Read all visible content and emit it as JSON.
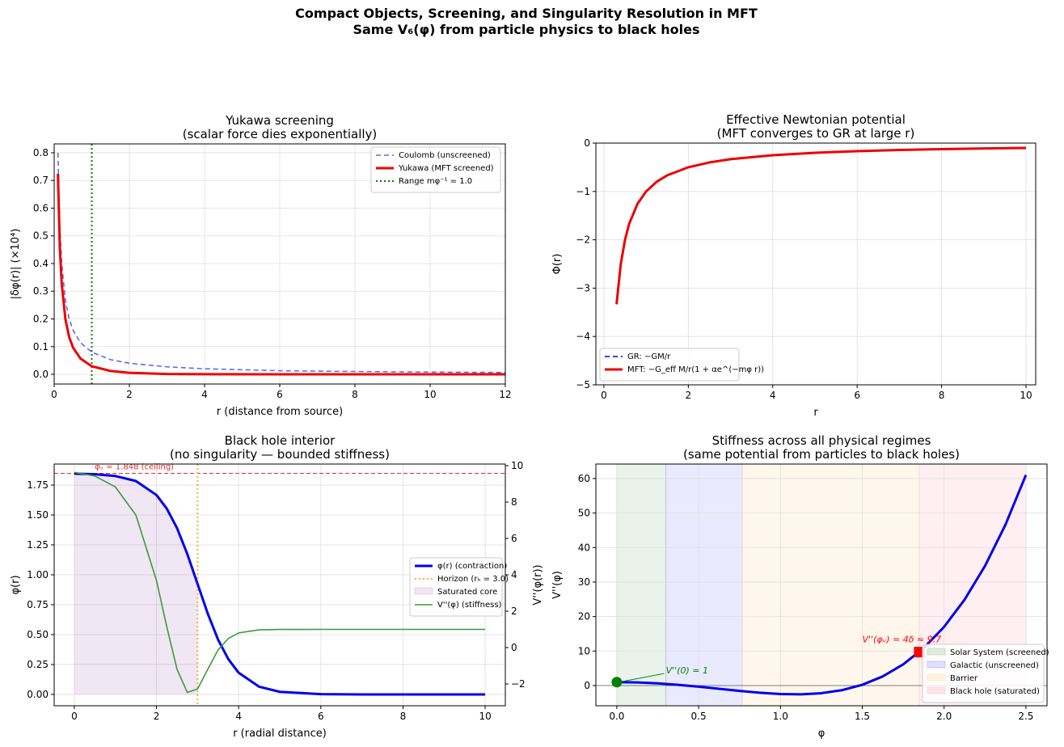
{
  "figure": {
    "suptitle_line1": "Compact Objects, Screening, and Singularity Resolution in MFT",
    "suptitle_line2": "Same V₆(φ) from particle physics to black holes"
  },
  "chart_data": [
    {
      "id": "p1",
      "type": "line",
      "title_line1": "Yukawa screening",
      "title_line2": "(scalar force dies exponentially)",
      "xlabel": "r (distance from source)",
      "ylabel": "|δφ(r)| (×10⁴)",
      "xlim": [
        0,
        12
      ],
      "ylim": [
        -0.035,
        0.832
      ],
      "xticks": [
        0,
        2,
        4,
        6,
        8,
        10,
        12
      ],
      "xticklabels": [
        "0",
        "2",
        "4",
        "6",
        "8",
        "10",
        "12"
      ],
      "yticks": [
        0,
        0.1,
        0.2,
        0.3,
        0.4,
        0.5,
        0.6,
        0.7,
        0.8
      ],
      "yticklabels": [
        "0.0",
        "0.1",
        "0.2",
        "0.3",
        "0.4",
        "0.5",
        "0.6",
        "0.7",
        "0.8"
      ],
      "grid": true,
      "legend_position": "upper right",
      "series": [
        {
          "name": "Coulomb (unscreened)",
          "color": "#6666ee",
          "style": "dashed",
          "x": [
            0.1,
            0.15,
            0.2,
            0.3,
            0.4,
            0.5,
            0.7,
            1,
            1.5,
            2,
            3,
            4,
            6,
            8,
            10,
            12
          ],
          "y": [
            0.8,
            0.533,
            0.4,
            0.267,
            0.2,
            0.16,
            0.114,
            0.08,
            0.053,
            0.04,
            0.027,
            0.02,
            0.013,
            0.01,
            0.008,
            0.0067
          ]
        },
        {
          "name": "Yukawa (MFT screened)",
          "color": "#ee0000",
          "style": "solid-thick",
          "x": [
            0.1,
            0.15,
            0.2,
            0.3,
            0.4,
            0.5,
            0.7,
            1,
            1.5,
            2,
            3,
            4,
            6,
            8,
            10,
            12
          ],
          "y": [
            0.724,
            0.459,
            0.328,
            0.198,
            0.134,
            0.097,
            0.057,
            0.029,
            0.012,
            0.0054,
            0.0013,
            0.0004,
            0,
            0,
            0,
            0
          ]
        }
      ],
      "vlines": [
        {
          "name": "Range mφ⁻¹ = 1.0",
          "x": 1.0,
          "color": "#008000",
          "style": "dotted"
        }
      ]
    },
    {
      "id": "p2",
      "type": "line",
      "title_line1": "Effective Newtonian potential",
      "title_line2": "(MFT converges to GR at large r)",
      "xlabel": "r",
      "ylabel": "Φ(r)",
      "xlim": [
        -0.19,
        10.23
      ],
      "ylim": [
        -5,
        0
      ],
      "xticks": [
        0,
        2,
        4,
        6,
        8,
        10
      ],
      "xticklabels": [
        "0",
        "2",
        "4",
        "6",
        "8",
        "10"
      ],
      "yticks": [
        0,
        -1,
        -2,
        -3,
        -4,
        -5
      ],
      "yticklabels": [
        "0",
        "−1",
        "−2",
        "−3",
        "−4",
        "−5"
      ],
      "grid": true,
      "legend_position": "lower left",
      "series": [
        {
          "name": "GR: −GM/r",
          "color": "#0000ee",
          "style": "dashed",
          "x": [
            0.3,
            0.4,
            0.5,
            0.6,
            0.8,
            1,
            1.25,
            1.5,
            2,
            2.5,
            3,
            4,
            5,
            6,
            7,
            8,
            9,
            10
          ],
          "y": [
            -3.333,
            -2.5,
            -2,
            -1.667,
            -1.25,
            -1,
            -0.8,
            -0.667,
            -0.5,
            -0.4,
            -0.333,
            -0.25,
            -0.2,
            -0.167,
            -0.143,
            -0.125,
            -0.111,
            -0.1
          ]
        },
        {
          "name": "MFT: −G_eff M/r(1 + αe^(−mφ r))",
          "color": "#ee0000",
          "style": "solid-thick",
          "x": [
            0.3,
            0.4,
            0.5,
            0.6,
            0.8,
            1,
            1.25,
            1.5,
            2,
            2.5,
            3,
            4,
            5,
            6,
            7,
            8,
            9,
            10
          ],
          "y": [
            -3.333,
            -2.5,
            -2,
            -1.667,
            -1.25,
            -1,
            -0.8,
            -0.667,
            -0.5,
            -0.4,
            -0.333,
            -0.25,
            -0.2,
            -0.167,
            -0.143,
            -0.125,
            -0.111,
            -0.1
          ]
        }
      ]
    },
    {
      "id": "p3",
      "type": "line",
      "title_line1": "Black hole interior",
      "title_line2": "(no singularity — bounded stiffness)",
      "xlabel": "r (radial distance)",
      "ylabel": "φ(r)",
      "ylabel_right": "V''(φ(r))",
      "xlim": [
        -0.49,
        10.49
      ],
      "ylim": [
        -0.095,
        1.926
      ],
      "ylim_right": [
        -3.2,
        10.09
      ],
      "xticks": [
        0,
        2,
        4,
        6,
        8,
        10
      ],
      "xticklabels": [
        "0",
        "2",
        "4",
        "6",
        "8",
        "10"
      ],
      "yticks": [
        0,
        0.25,
        0.5,
        0.75,
        1.0,
        1.25,
        1.5,
        1.75
      ],
      "yticklabels": [
        "0.00",
        "0.25",
        "0.50",
        "0.75",
        "1.00",
        "1.25",
        "1.50",
        "1.75"
      ],
      "yticks_right": [
        -2,
        0,
        2,
        4,
        6,
        8,
        10
      ],
      "yticklabels_right": [
        "−2",
        "0",
        "2",
        "4",
        "6",
        "8",
        "10"
      ],
      "grid": true,
      "legend_position": "center right",
      "fill": {
        "name": "Saturated core",
        "color": "#9b59b6",
        "alpha": 0.15,
        "x_from": 0,
        "x_to": 3
      },
      "series": [
        {
          "name": "φ(r) (contraction)",
          "color": "#0000ee",
          "style": "solid-thick",
          "axis": "left",
          "x": [
            0,
            0.5,
            1,
            1.5,
            2,
            2.25,
            2.5,
            2.75,
            3,
            3.25,
            3.5,
            3.75,
            4,
            4.5,
            5,
            6,
            7,
            8,
            10
          ],
          "y": [
            1.846,
            1.841,
            1.826,
            1.784,
            1.667,
            1.554,
            1.391,
            1.174,
            0.924,
            0.674,
            0.457,
            0.294,
            0.181,
            0.064,
            0.0216,
            0.0023,
            0,
            0,
            0
          ]
        },
        {
          "name": "V''(φ) (stiffness)",
          "color": "#3a9a3a",
          "style": "solid",
          "axis": "right",
          "x": [
            0,
            0.5,
            1,
            1.5,
            2,
            2.25,
            2.5,
            2.75,
            3,
            3.25,
            3.5,
            3.75,
            4,
            4.5,
            5,
            6,
            7,
            8,
            10
          ],
          "y": [
            9.63,
            9.43,
            8.83,
            7.28,
            3.69,
            1.15,
            -1.19,
            -2.47,
            -2.27,
            -1.19,
            -0.13,
            0.505,
            0.805,
            0.976,
            0.997,
            1,
            1,
            1,
            1
          ]
        }
      ],
      "vlines": [
        {
          "name": "Horizon (rₕ = 3.0)",
          "x": 3.0,
          "color": "#ffb030",
          "style": "dotted"
        }
      ],
      "hlines": [
        {
          "label": "φᵥ = 1.848 (ceiling)",
          "y": 1.848,
          "color": "#e03030",
          "style": "dashed"
        }
      ],
      "legend_order": [
        "φ(r) (contraction)",
        "Horizon (rₕ = 3.0)",
        "Saturated core",
        "V''(φ) (stiffness)"
      ]
    },
    {
      "id": "p4",
      "type": "line",
      "title_line1": "Stiffness across all physical regimes",
      "title_line2": "(same potential from particles to black holes)",
      "xlabel": "φ",
      "ylabel": "V''(φ)",
      "xlim": [
        -0.128,
        2.629
      ],
      "ylim": [
        -5.86,
        64.2
      ],
      "xticks": [
        0,
        0.5,
        1.0,
        1.5,
        2.0,
        2.5
      ],
      "xticklabels": [
        "0.0",
        "0.5",
        "1.0",
        "1.5",
        "2.0",
        "2.5"
      ],
      "yticks": [
        0,
        10,
        20,
        30,
        40,
        50,
        60
      ],
      "yticklabels": [
        "0",
        "10",
        "20",
        "30",
        "40",
        "50",
        "60"
      ],
      "grid": true,
      "legend_position": "lower right",
      "regions": [
        {
          "name": "Solar System (screened)",
          "from": 0,
          "to": 0.3,
          "color": "#2e8b2e"
        },
        {
          "name": "Galactic (unscreened)",
          "from": 0.3,
          "to": 0.766,
          "color": "#3333ff"
        },
        {
          "name": "Barrier",
          "from": 0.766,
          "to": 1.848,
          "color": "#ffb347"
        },
        {
          "name": "Black hole (saturated)",
          "from": 1.848,
          "to": 2.5,
          "color": "#ff6680"
        }
      ],
      "series": [
        {
          "color": "#0000ee",
          "style": "solid-thick",
          "x": [
            0,
            0.125,
            0.25,
            0.375,
            0.5,
            0.625,
            0.75,
            0.875,
            1,
            1.125,
            1.25,
            1.375,
            1.5,
            1.625,
            1.75,
            1.875,
            2,
            2.125,
            2.25,
            2.375,
            2.5
          ],
          "y": [
            1,
            0.908,
            0.638,
            0.213,
            -0.331,
            -0.943,
            -1.558,
            -2.094,
            -2.458,
            -2.54,
            -2.217,
            -1.349,
            0.217,
            2.648,
            6.125,
            10.85,
            17.02,
            24.88,
            34.67,
            46.62,
            61.03
          ]
        }
      ],
      "points": [
        {
          "x": 0,
          "y": 1,
          "color": "#008000",
          "marker": "circle",
          "label": "V''(0) = 1"
        },
        {
          "x": 1.848,
          "y": 9.7,
          "color": "#ff0000",
          "marker": "square",
          "label": "V''(φᵥ) = 4δ ≈ 9.7"
        }
      ]
    }
  ]
}
